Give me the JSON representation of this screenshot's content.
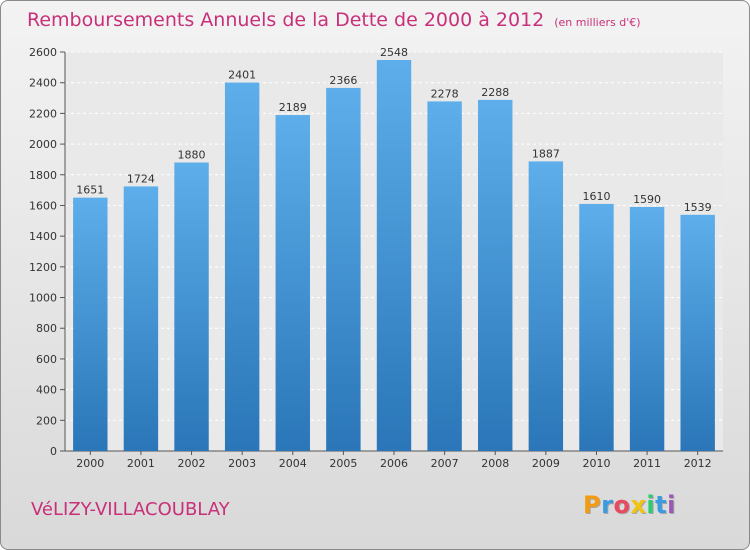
{
  "chart_data": {
    "type": "bar",
    "title": "Remboursements Annuels de la Dette de 2000 à 2012",
    "subtitle": "(en milliers d'€)",
    "categories": [
      "2000",
      "2001",
      "2002",
      "2003",
      "2004",
      "2005",
      "2006",
      "2007",
      "2008",
      "2009",
      "2010",
      "2011",
      "2012"
    ],
    "values": [
      1651,
      1724,
      1880,
      2401,
      2189,
      2366,
      2548,
      2278,
      2288,
      1887,
      1610,
      1590,
      1539
    ],
    "ylim": [
      0,
      2600
    ],
    "yticks": [
      0,
      200,
      400,
      600,
      800,
      1000,
      1200,
      1400,
      1600,
      1800,
      2000,
      2200,
      2400,
      2600
    ],
    "xlabel": "",
    "ylabel": "",
    "grid": true
  },
  "footer": {
    "commune": "VéLIZY-VILLACOUBLAY",
    "logo_letters": [
      "P",
      "r",
      "o",
      "x",
      "i",
      "t",
      "i"
    ]
  },
  "colors": {
    "title": "#c8307a",
    "bar_top": "#5daeea",
    "bar_bottom": "#2a76b8",
    "logo": [
      "#f39c12",
      "#3a9be0",
      "#e84a5f",
      "#f1c40f",
      "#2ecc71",
      "#3a9be0",
      "#9b59b6"
    ]
  }
}
